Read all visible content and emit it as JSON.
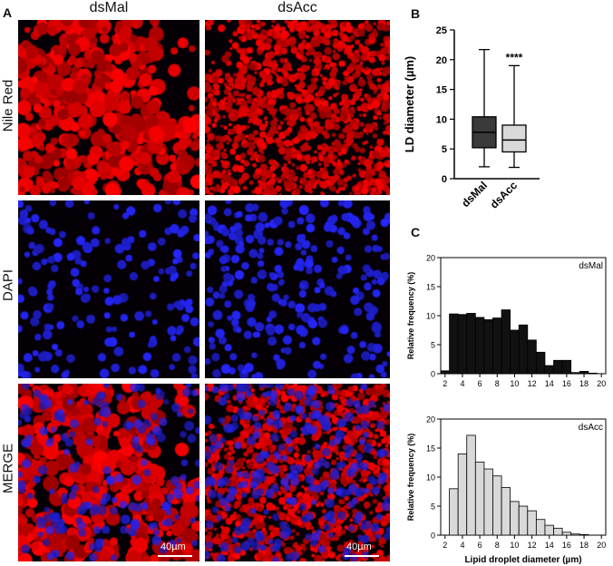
{
  "panel_labels": {
    "a": "A",
    "b": "B",
    "c": "C"
  },
  "micrographs": {
    "columns": [
      "dsMal",
      "dsAcc"
    ],
    "rows": [
      "Nile Red",
      "DAPI",
      "MERGE"
    ],
    "scale_bar_label": "40µm",
    "colors": {
      "nile_red": "#e00000",
      "dapi": "#1a1aff",
      "background": "#050005"
    }
  },
  "chart_data": [
    {
      "type": "box",
      "title": "",
      "ylabel": "LD diameter (µm)",
      "categories": [
        "dsMal",
        "dsAcc"
      ],
      "ylim": [
        0,
        25
      ],
      "yticks": [
        0,
        5,
        10,
        15,
        20,
        25
      ],
      "boxes": [
        {
          "name": "dsMal",
          "min": 2,
          "q1": 5.2,
          "median": 7.8,
          "q3": 10.4,
          "max": 21.7,
          "fill": "#3a3a3a"
        },
        {
          "name": "dsAcc",
          "min": 1.9,
          "q1": 4.5,
          "median": 6.5,
          "q3": 9.0,
          "max": 19.0,
          "fill": "#d9d9d9"
        }
      ],
      "annotation": "****"
    },
    {
      "type": "bar",
      "legend_label": "dsMal",
      "ylabel": "Relative frequency (%)",
      "xlabel": "",
      "ylim": [
        0,
        20
      ],
      "yticks": [
        0,
        5,
        10,
        15,
        20
      ],
      "xticks": [
        2,
        4,
        6,
        8,
        10,
        12,
        14,
        16,
        18,
        20
      ],
      "x": [
        2,
        3,
        4,
        5,
        6,
        7,
        8,
        9,
        10,
        11,
        12,
        13,
        14,
        15,
        16,
        17,
        18,
        19
      ],
      "values": [
        0.5,
        10.3,
        10.2,
        10.4,
        9.7,
        9.3,
        9.6,
        11.0,
        7.5,
        8.4,
        5.8,
        3.7,
        1.4,
        2.3,
        2.3,
        0.2,
        0.4,
        0.1
      ],
      "bar_color": "#111111"
    },
    {
      "type": "bar",
      "legend_label": "dsAcc",
      "ylabel": "Relative frequency (%)",
      "xlabel": "Lipid droplet diameter (µm)",
      "ylim": [
        0,
        20
      ],
      "yticks": [
        0,
        5,
        10,
        15,
        20
      ],
      "xticks": [
        2,
        4,
        6,
        8,
        10,
        12,
        14,
        16,
        18,
        20
      ],
      "x": [
        3,
        4,
        5,
        6,
        7,
        8,
        9,
        10,
        11,
        12,
        13,
        14,
        15,
        16,
        17,
        18
      ],
      "values": [
        8.0,
        14.0,
        17.2,
        12.6,
        11.4,
        10.2,
        8.2,
        5.8,
        5.0,
        4.2,
        2.7,
        1.7,
        1.2,
        0.5,
        0.2,
        0.1
      ],
      "bar_color": "#d9d9d9"
    }
  ]
}
